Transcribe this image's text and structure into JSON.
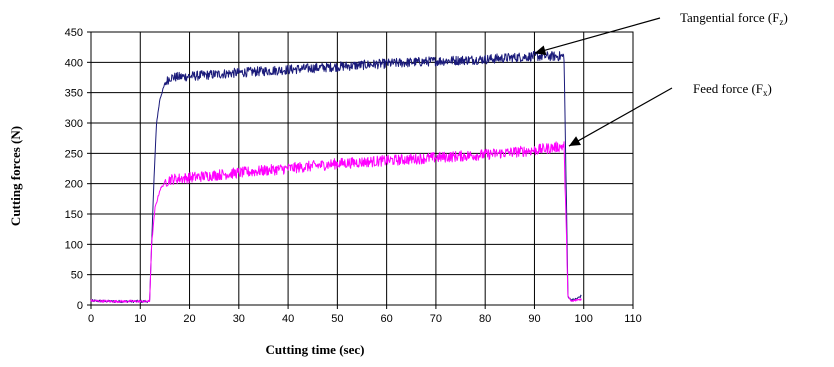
{
  "chart_data": {
    "type": "line",
    "title": "",
    "xlabel": "Cutting time (sec)",
    "ylabel": "Cutting forces (N)",
    "xlim": [
      0,
      110
    ],
    "ylim": [
      0,
      450
    ],
    "x_ticks": [
      0,
      10,
      20,
      30,
      40,
      50,
      60,
      70,
      80,
      90,
      100,
      110
    ],
    "y_ticks": [
      0,
      50,
      100,
      150,
      200,
      250,
      300,
      350,
      400,
      450
    ],
    "grid": true,
    "series": [
      {
        "name": "Tangential force",
        "color": "#1a1a7a",
        "x": [
          0,
          4,
          8,
          11.9,
          12.3,
          12.8,
          13.3,
          14,
          15,
          16,
          20,
          30,
          40,
          50,
          60,
          70,
          80,
          90,
          96,
          96.8,
          97.2,
          97.6,
          98.5,
          99.5
        ],
        "y": [
          7,
          6,
          6,
          6,
          100,
          210,
          300,
          340,
          365,
          375,
          377,
          383,
          388,
          393,
          398,
          402,
          405,
          410,
          410,
          15,
          10,
          8,
          10,
          15
        ],
        "noise": 8
      },
      {
        "name": "Feed force",
        "color": "#ff00ff",
        "x": [
          0,
          4,
          8,
          11.9,
          12.3,
          13,
          14,
          15,
          16,
          20,
          30,
          40,
          50,
          60,
          70,
          80,
          90,
          96,
          96.8,
          97.2,
          97.6,
          98.5,
          99.5
        ],
        "y": [
          7,
          6,
          6,
          6,
          100,
          160,
          190,
          202,
          207,
          210,
          218,
          225,
          233,
          238,
          243,
          248,
          255,
          262,
          15,
          8,
          6,
          8,
          10
        ],
        "noise": 9
      }
    ],
    "annotations": [
      {
        "text": "Tangential force (F",
        "subscript": "z",
        "suffix": ")",
        "points_to": {
          "x": 90,
          "y": 415
        }
      },
      {
        "text": "Feed force (F",
        "subscript": "x",
        "suffix": ")",
        "points_to": {
          "x": 97,
          "y": 262
        }
      }
    ]
  }
}
